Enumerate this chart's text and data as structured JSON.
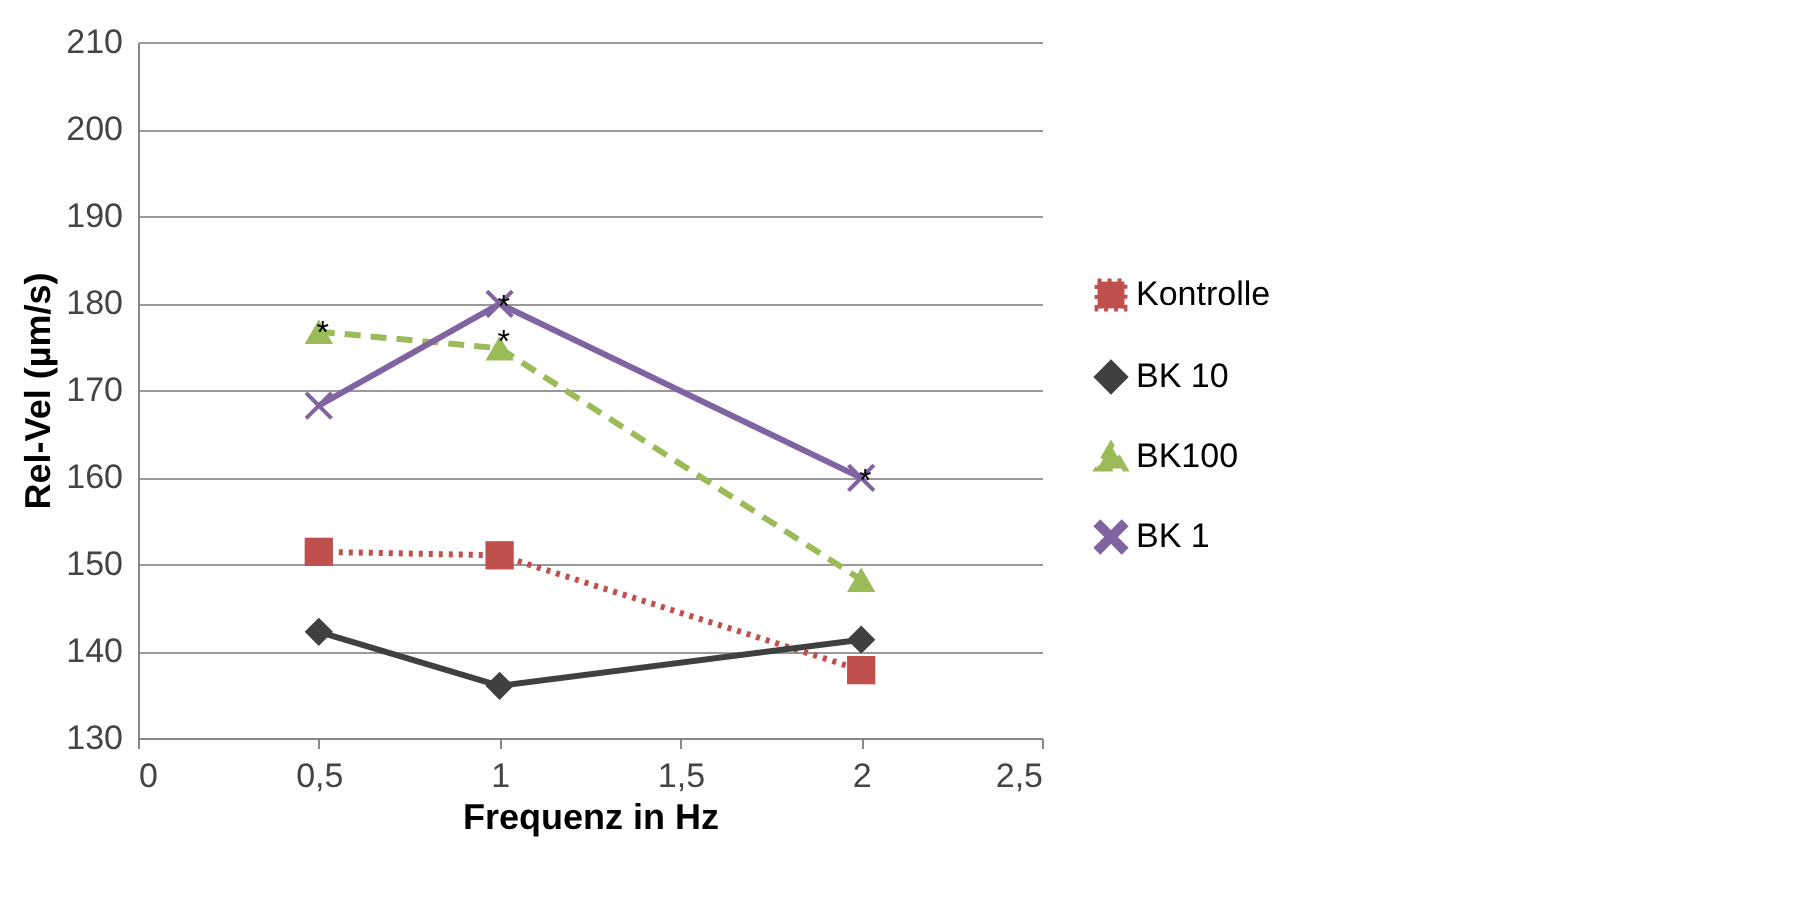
{
  "chart_data": {
    "type": "line",
    "xlabel": "Frequenz in Hz",
    "ylabel": "Rel-Vel (µm/s)",
    "x": [
      0.5,
      1,
      2
    ],
    "series": [
      {
        "name": "Kontrolle",
        "color": "#c0504d",
        "values": [
          151.4,
          151,
          137.8
        ],
        "marker": "square",
        "line_style": "dotted"
      },
      {
        "name": "BK 10",
        "color": "#404040",
        "values": [
          142.2,
          136,
          141.3
        ],
        "marker": "diamond",
        "line_style": "solid"
      },
      {
        "name": "BK100",
        "color": "#9bbb59",
        "values": [
          176.7,
          174.8,
          148.2
        ],
        "marker": "triangle",
        "line_style": "dashed"
      },
      {
        "name": "BK 1",
        "color": "#8064a2",
        "values": [
          168.2,
          179.9,
          159.9
        ],
        "marker": "cross",
        "line_style": "solid"
      }
    ],
    "xlim": [
      0,
      2.5
    ],
    "xticks": [
      0,
      {
        "value": 0.5,
        "label": "0,5"
      },
      1,
      {
        "value": 1.5,
        "label": "1,5"
      },
      2,
      {
        "value": 2.5,
        "label": "2,5"
      }
    ],
    "ylim": [
      130,
      210
    ],
    "yticks": [
      130,
      140,
      150,
      160,
      170,
      180,
      190,
      200,
      210
    ],
    "grid": "y",
    "legend": "right",
    "annotations": [
      {
        "text": "*",
        "x": 0.5,
        "y": 177
      },
      {
        "text": "*",
        "x": 1,
        "y": 180
      },
      {
        "text": "*",
        "x": 1,
        "y": 176
      },
      {
        "text": "*",
        "x": 2,
        "y": 160
      }
    ]
  }
}
